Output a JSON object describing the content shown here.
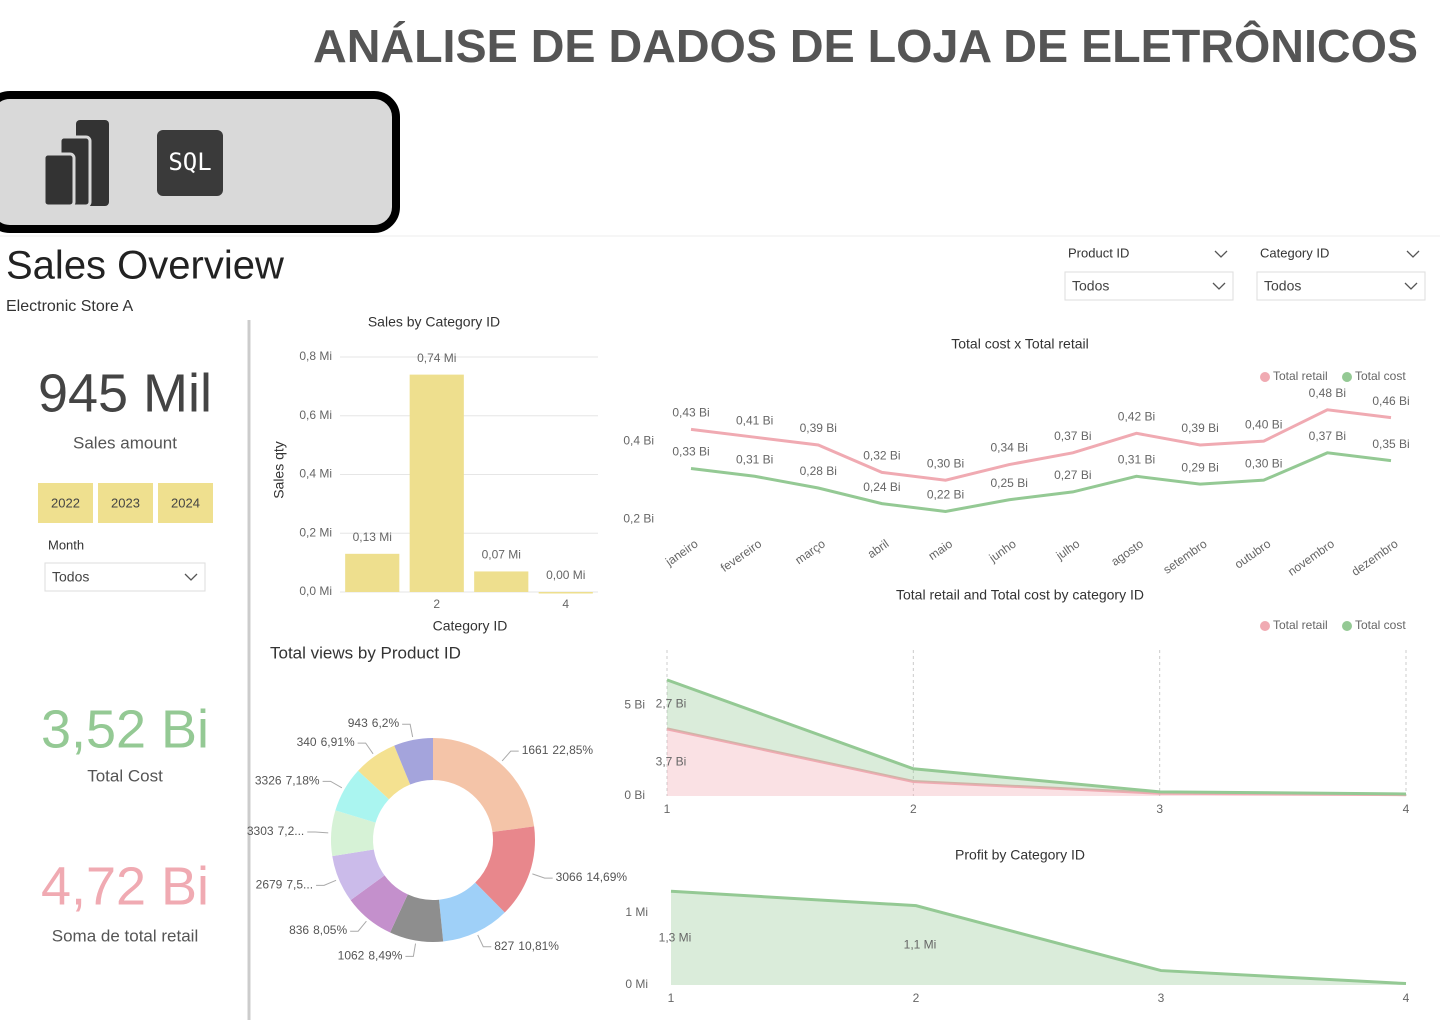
{
  "header": {
    "title": "ANÁLISE DE DADOS DE LOJA DE ELETRÔNICOS"
  },
  "toolbar": {
    "sql_label": "SQL"
  },
  "report": {
    "title": "Sales Overview",
    "subtitle": "Electronic Store A"
  },
  "kpis": [
    {
      "value": "945 Mil",
      "label": "Sales amount",
      "color": "#444444"
    },
    {
      "value": "3,52 Bi",
      "label": "Total Cost",
      "color": "#94c994"
    },
    {
      "value": "4,72 Bi",
      "label": "Soma de total retail",
      "color": "#f0aab2"
    }
  ],
  "year_buttons": [
    "2022",
    "2023",
    "2024"
  ],
  "slicers": [
    {
      "label": "Month",
      "value": "Todos"
    },
    {
      "label": "Product ID",
      "value": "Todos"
    },
    {
      "label": "Category ID",
      "value": "Todos"
    }
  ],
  "chart_data": [
    {
      "type": "bar",
      "title": "Sales by Category ID",
      "x_label": "Category ID",
      "y_label": "Sales qty",
      "categories": [
        null,
        "2",
        null,
        "4"
      ],
      "values": [
        0.13,
        0.74,
        0.07,
        0.0
      ],
      "value_labels": [
        "0,13 Mi",
        "0,74 Mi",
        "0,07 Mi",
        "0,00 Mi"
      ],
      "color": "#eedf8e",
      "ylim": [
        0,
        0.8
      ],
      "yticks": [
        {
          "value": 0,
          "label": "0,0 Mi"
        },
        {
          "value": 0.2,
          "label": "0,2 Mi"
        },
        {
          "value": 0.4,
          "label": "0,4 Mi"
        },
        {
          "value": 0.6,
          "label": "0,6 Mi"
        },
        {
          "value": 0.8,
          "label": "0,8 Mi"
        }
      ],
      "grid": true
    },
    {
      "type": "donut",
      "title": "Total views by Product ID",
      "categories": [
        "1661",
        "3066",
        "827",
        "1062",
        "836",
        "2679",
        "3303",
        "3326",
        "340",
        "943"
      ],
      "values": [
        22.85,
        14.69,
        10.81,
        8.49,
        8.05,
        7.5,
        7.2,
        7.18,
        6.91,
        6.2
      ],
      "value_labels": [
        "22,85%",
        "14,69%",
        "10,81%",
        "8,49%",
        "8,05%",
        "7,5...",
        "7,2...",
        "7,18%",
        "6,91%",
        "6,2%"
      ],
      "colors": [
        "#f4c4a8",
        "#e8878c",
        "#9fd0f8",
        "#8e8e8e",
        "#c490cc",
        "#cbbbea",
        "#d6f2d6",
        "#aaf5f0",
        "#f4e190",
        "#a4a4dc"
      ]
    },
    {
      "type": "line",
      "title": "Total cost x Total retail",
      "categories": [
        "janeiro",
        "fevereiro",
        "março",
        "abril",
        "maio",
        "junho",
        "julho",
        "agosto",
        "setembro",
        "outubro",
        "novembro",
        "dezembro"
      ],
      "series": [
        {
          "name": "Total retail",
          "color": "#f0aab2",
          "values": [
            0.43,
            0.41,
            0.39,
            0.32,
            0.3,
            0.34,
            0.37,
            0.42,
            0.39,
            0.4,
            0.48,
            0.46
          ],
          "value_labels": [
            "0,43 Bi",
            "0,41 Bi",
            "0,39 Bi",
            "0,32 Bi",
            "0,30 Bi",
            "0,34 Bi",
            "0,37 Bi",
            "0,42 Bi",
            "0,39 Bi",
            "0,40 Bi",
            "0,48 Bi",
            "0,46 Bi"
          ]
        },
        {
          "name": "Total cost",
          "color": "#94c994",
          "values": [
            0.33,
            0.31,
            0.28,
            0.24,
            0.22,
            0.25,
            0.27,
            0.31,
            0.29,
            0.3,
            0.37,
            0.35
          ],
          "value_labels": [
            "0,33 Bi",
            "0,31 Bi",
            "0,28 Bi",
            "0,24 Bi",
            "0,22 Bi",
            "0,25 Bi",
            "0,27 Bi",
            "0,31 Bi",
            "0,29 Bi",
            "0,30 Bi",
            "0,37 Bi",
            "0,35 Bi"
          ]
        }
      ],
      "ylim": [
        0.17,
        0.5
      ],
      "yticks": [
        {
          "value": 0.2,
          "label": "0,2 Bi"
        },
        {
          "value": 0.4,
          "label": "0,4 Bi"
        }
      ],
      "legend": "top-right"
    },
    {
      "type": "area",
      "stacked": true,
      "title": "Total retail and Total cost by category ID",
      "x": [
        1,
        2,
        3,
        4
      ],
      "xlim": [
        1,
        4
      ],
      "xticks": [
        1,
        2,
        3,
        4
      ],
      "series": [
        {
          "name": "Total retail",
          "color": "#f0aab2",
          "values": [
            3.7,
            0.8,
            0.15,
            0.07
          ],
          "value_labels": [
            "3,7 Bi",
            null,
            null,
            null
          ]
        },
        {
          "name": "Total cost",
          "color": "#94c994",
          "values": [
            2.7,
            0.7,
            0.08,
            0.04
          ],
          "value_labels": [
            "2,7 Bi",
            null,
            null,
            null
          ]
        }
      ],
      "ylim": [
        0,
        7
      ],
      "yticks": [
        {
          "value": 0,
          "label": "0 Bi"
        },
        {
          "value": 5,
          "label": "5 Bi"
        }
      ],
      "grid": true,
      "legend": "top-right"
    },
    {
      "type": "area",
      "title": "Profit by Category ID",
      "x": [
        1,
        2,
        3,
        4
      ],
      "xlim": [
        1,
        4
      ],
      "xticks": [
        1,
        2,
        3,
        4
      ],
      "values": [
        1.3,
        1.1,
        0.2,
        0.02
      ],
      "value_labels": [
        "1,3 Mi",
        "1,1 Mi",
        null,
        null
      ],
      "color": "#94c994",
      "ylim": [
        0,
        1.4
      ],
      "yticks": [
        {
          "value": 0,
          "label": "0 Mi"
        },
        {
          "value": 1,
          "label": "1 Mi"
        }
      ]
    }
  ]
}
